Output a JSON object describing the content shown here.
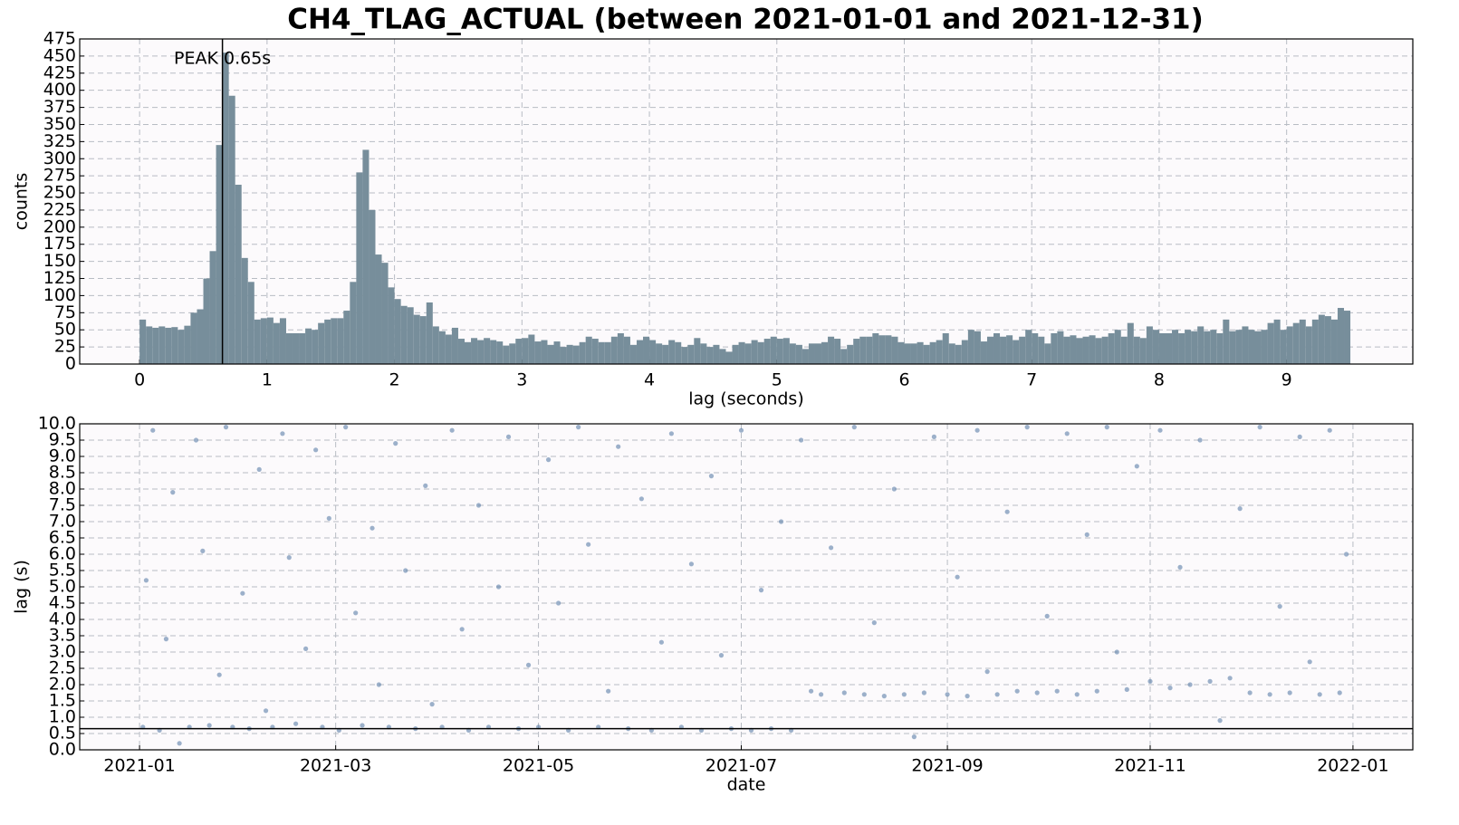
{
  "chart_data": [
    {
      "type": "histogram",
      "title": "CH4_TLAG_ACTUAL (between 2021-01-01 and 2021-12-31)",
      "x_label": "lag (seconds)",
      "y_label": "counts",
      "color": "#778e9b",
      "grid": true,
      "bins": [
        0,
        0.05,
        0.1,
        0.15,
        0.2,
        0.25,
        0.3,
        0.35,
        0.4,
        0.45,
        0.5,
        0.55,
        0.6,
        0.65,
        0.7,
        0.75,
        0.8,
        0.85,
        0.9,
        0.95,
        1,
        1.05,
        1.1,
        1.15,
        1.2,
        1.25,
        1.3,
        1.35,
        1.4,
        1.45,
        1.5,
        1.55,
        1.6,
        1.65,
        1.7,
        1.75,
        1.8,
        1.85,
        1.9,
        1.95,
        2,
        2.05,
        2.1,
        2.15,
        2.2,
        2.25,
        2.3,
        2.35,
        2.4,
        2.45,
        2.5,
        2.55,
        2.6,
        2.65,
        2.7,
        2.75,
        2.8,
        2.85,
        2.9,
        2.95,
        3,
        3.05,
        3.1,
        3.15,
        3.2,
        3.25,
        3.3,
        3.35,
        3.4,
        3.45,
        3.5,
        3.55,
        3.6,
        3.65,
        3.7,
        3.75,
        3.8,
        3.85,
        3.9,
        3.95,
        4,
        4.05,
        4.1,
        4.15,
        4.2,
        4.25,
        4.3,
        4.35,
        4.4,
        4.45,
        4.5,
        4.55,
        4.6,
        4.65,
        4.7,
        4.75,
        4.8,
        4.85,
        4.9,
        4.95,
        5,
        5.05,
        5.1,
        5.15,
        5.2,
        5.25,
        5.3,
        5.35,
        5.4,
        5.45,
        5.5,
        5.55,
        5.6,
        5.65,
        5.7,
        5.75,
        5.8,
        5.85,
        5.9,
        5.95,
        6,
        6.05,
        6.1,
        6.15,
        6.2,
        6.25,
        6.3,
        6.35,
        6.4,
        6.45,
        6.5,
        6.55,
        6.6,
        6.65,
        6.7,
        6.75,
        6.8,
        6.85,
        6.9,
        6.95,
        7,
        7.05,
        7.1,
        7.15,
        7.2,
        7.25,
        7.3,
        7.35,
        7.4,
        7.45,
        7.5,
        7.55,
        7.6,
        7.65,
        7.7,
        7.75,
        7.8,
        7.85,
        7.9,
        7.95,
        8,
        8.05,
        8.1,
        8.15,
        8.2,
        8.25,
        8.3,
        8.35,
        8.4,
        8.45,
        8.5,
        8.55,
        8.6,
        8.65,
        8.7,
        8.75,
        8.8,
        8.85,
        8.9,
        8.95,
        9,
        9.05,
        9.1,
        9.15,
        9.2,
        9.25,
        9.3,
        9.35,
        9.4,
        9.45,
        9.5
      ],
      "values": [
        65,
        55,
        53,
        55,
        53,
        54,
        50,
        56,
        75,
        80,
        125,
        165,
        320,
        455,
        392,
        262,
        155,
        120,
        65,
        67,
        68,
        60,
        67,
        45,
        45,
        45,
        52,
        50,
        60,
        65,
        67,
        67,
        78,
        120,
        280,
        313,
        225,
        160,
        148,
        112,
        95,
        85,
        83,
        72,
        70,
        90,
        55,
        48,
        43,
        53,
        37,
        32,
        38,
        35,
        38,
        35,
        33,
        27,
        30,
        37,
        38,
        43,
        33,
        35,
        28,
        33,
        25,
        28,
        27,
        32,
        40,
        37,
        32,
        32,
        40,
        45,
        40,
        28,
        35,
        40,
        35,
        30,
        28,
        35,
        32,
        25,
        28,
        38,
        30,
        25,
        28,
        22,
        18,
        28,
        32,
        30,
        35,
        32,
        37,
        40,
        37,
        38,
        30,
        28,
        22,
        30,
        30,
        32,
        40,
        37,
        22,
        28,
        37,
        40,
        40,
        45,
        42,
        42,
        40,
        32,
        30,
        30,
        32,
        28,
        32,
        35,
        45,
        30,
        28,
        35,
        50,
        48,
        33,
        40,
        45,
        40,
        42,
        35,
        40,
        50,
        45,
        40,
        30,
        45,
        48,
        40,
        42,
        38,
        40,
        42,
        38,
        40,
        45,
        50,
        40,
        60,
        40,
        38,
        55,
        50,
        45,
        45,
        50,
        45,
        50,
        48,
        55,
        48,
        50,
        45,
        65,
        48,
        50,
        55,
        50,
        48,
        50,
        60,
        65,
        50,
        55,
        60,
        65,
        55,
        65,
        72,
        70,
        65,
        82,
        78
      ],
      "peak": {
        "value": 0.65,
        "label": "PEAK 0.65s"
      },
      "xlim": [
        -0.47,
        9.99
      ],
      "xticks": [
        0,
        1,
        2,
        3,
        4,
        5,
        6,
        7,
        8,
        9
      ],
      "ylim": [
        0,
        475
      ],
      "yticks": [
        0,
        25,
        50,
        75,
        100,
        125,
        150,
        175,
        200,
        225,
        250,
        275,
        300,
        325,
        350,
        375,
        400,
        425,
        450,
        475
      ]
    },
    {
      "type": "scatter",
      "x_label": "date",
      "y_label": "lag (s)",
      "color": "#5b7fa8",
      "grid": true,
      "hline": 0.65,
      "x": [
        "2021-01-02",
        "2021-01-03",
        "2021-01-05",
        "2021-01-07",
        "2021-01-09",
        "2021-01-11",
        "2021-01-13",
        "2021-01-16",
        "2021-01-18",
        "2021-01-20",
        "2021-01-22",
        "2021-01-25",
        "2021-01-27",
        "2021-01-29",
        "2021-02-01",
        "2021-02-03",
        "2021-02-06",
        "2021-02-08",
        "2021-02-10",
        "2021-02-13",
        "2021-02-15",
        "2021-02-17",
        "2021-02-20",
        "2021-02-23",
        "2021-02-25",
        "2021-02-27",
        "2021-03-02",
        "2021-03-04",
        "2021-03-07",
        "2021-03-09",
        "2021-03-12",
        "2021-03-14",
        "2021-03-17",
        "2021-03-19",
        "2021-03-22",
        "2021-03-25",
        "2021-03-28",
        "2021-03-30",
        "2021-04-02",
        "2021-04-05",
        "2021-04-08",
        "2021-04-10",
        "2021-04-13",
        "2021-04-16",
        "2021-04-19",
        "2021-04-22",
        "2021-04-25",
        "2021-04-28",
        "2021-05-01",
        "2021-05-04",
        "2021-05-07",
        "2021-05-10",
        "2021-05-13",
        "2021-05-16",
        "2021-05-19",
        "2021-05-22",
        "2021-05-25",
        "2021-05-28",
        "2021-06-01",
        "2021-06-04",
        "2021-06-07",
        "2021-06-10",
        "2021-06-13",
        "2021-06-16",
        "2021-06-19",
        "2021-06-22",
        "2021-06-25",
        "2021-06-28",
        "2021-07-01",
        "2021-07-04",
        "2021-07-07",
        "2021-07-10",
        "2021-07-13",
        "2021-07-16",
        "2021-07-19",
        "2021-07-22",
        "2021-07-25",
        "2021-07-28",
        "2021-08-01",
        "2021-08-04",
        "2021-08-07",
        "2021-08-10",
        "2021-08-13",
        "2021-08-16",
        "2021-08-19",
        "2021-08-22",
        "2021-08-25",
        "2021-08-28",
        "2021-09-01",
        "2021-09-04",
        "2021-09-07",
        "2021-09-10",
        "2021-09-13",
        "2021-09-16",
        "2021-09-19",
        "2021-09-22",
        "2021-09-25",
        "2021-09-28",
        "2021-10-01",
        "2021-10-04",
        "2021-10-07",
        "2021-10-10",
        "2021-10-13",
        "2021-10-16",
        "2021-10-19",
        "2021-10-22",
        "2021-10-25",
        "2021-10-28",
        "2021-11-01",
        "2021-11-04",
        "2021-11-07",
        "2021-11-10",
        "2021-11-13",
        "2021-11-16",
        "2021-11-19",
        "2021-11-22",
        "2021-11-25",
        "2021-11-28",
        "2021-12-01",
        "2021-12-04",
        "2021-12-07",
        "2021-12-10",
        "2021-12-13",
        "2021-12-16",
        "2021-12-19",
        "2021-12-22",
        "2021-12-25",
        "2021-12-28",
        "2021-12-30"
      ],
      "values": [
        0.7,
        5.2,
        9.8,
        0.6,
        3.4,
        7.9,
        0.2,
        0.7,
        9.5,
        6.1,
        0.75,
        2.3,
        9.9,
        0.7,
        4.8,
        0.65,
        8.6,
        1.2,
        0.7,
        9.7,
        5.9,
        0.8,
        3.1,
        9.2,
        0.7,
        7.1,
        0.6,
        9.9,
        4.2,
        0.75,
        6.8,
        2.0,
        0.7,
        9.4,
        5.5,
        0.65,
        8.1,
        1.4,
        0.7,
        9.8,
        3.7,
        0.6,
        7.5,
        0.7,
        5.0,
        9.6,
        0.65,
        2.6,
        0.7,
        8.9,
        4.5,
        0.6,
        9.9,
        6.3,
        0.7,
        1.8,
        9.3,
        0.65,
        7.7,
        0.6,
        3.3,
        9.7,
        0.7,
        5.7,
        0.6,
        8.4,
        2.9,
        0.65,
        9.8,
        0.6,
        4.9,
        0.65,
        7.0,
        0.6,
        9.5,
        1.8,
        1.7,
        6.2,
        1.75,
        9.9,
        1.7,
        3.9,
        1.65,
        8.0,
        1.7,
        0.4,
        1.75,
        9.6,
        1.7,
        5.3,
        1.65,
        9.8,
        2.4,
        1.7,
        7.3,
        1.8,
        9.9,
        1.75,
        4.1,
        1.8,
        9.7,
        1.7,
        6.6,
        1.8,
        9.9,
        3.0,
        1.85,
        8.7,
        2.1,
        9.8,
        1.9,
        5.6,
        2.0,
        9.5,
        2.1,
        0.9,
        2.2,
        7.4,
        1.75,
        9.9,
        1.7,
        4.4,
        1.75,
        9.6,
        2.7,
        1.7,
        9.8,
        1.75,
        6.0
      ],
      "xlim": [
        "2020-12-14",
        "2022-01-19"
      ],
      "xticks": [
        "2021-01",
        "2021-03",
        "2021-05",
        "2021-07",
        "2021-09",
        "2021-11",
        "2022-01"
      ],
      "ylim": [
        0,
        10
      ],
      "yticks": [
        {
          "value": 0,
          "label": "0.0"
        },
        0.5,
        {
          "value": 1,
          "label": "1.0"
        },
        1.5,
        {
          "value": 2,
          "label": "2.0"
        },
        2.5,
        {
          "value": 3,
          "label": "3.0"
        },
        3.5,
        {
          "value": 4,
          "label": "4.0"
        },
        4.5,
        {
          "value": 5,
          "label": "5.0"
        },
        5.5,
        {
          "value": 6,
          "label": "6.0"
        },
        6.5,
        {
          "value": 7,
          "label": "7.0"
        },
        7.5,
        {
          "value": 8,
          "label": "8.0"
        },
        8.5,
        {
          "value": 9,
          "label": "9.0"
        },
        9.5,
        {
          "value": 10,
          "label": "10.0"
        }
      ]
    }
  ]
}
